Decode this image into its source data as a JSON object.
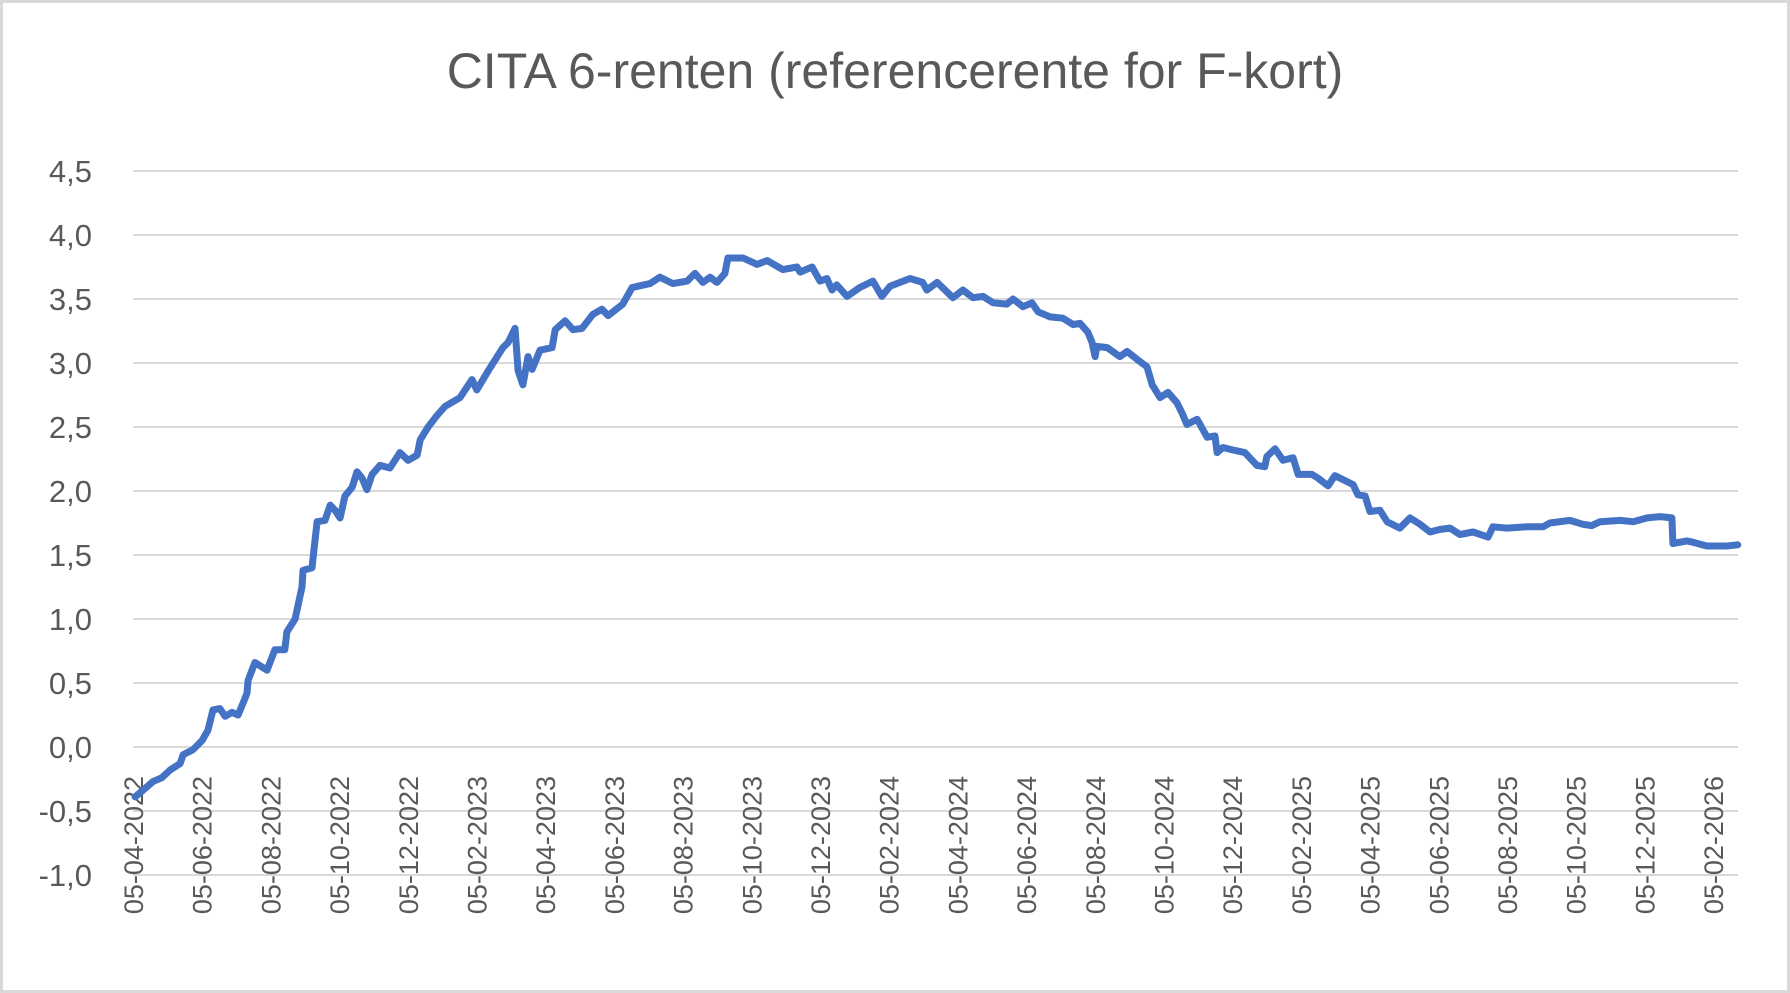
{
  "chart_data": {
    "type": "line",
    "title": "CITA 6-renten (referencerente for F-kort)",
    "xlabel": "",
    "ylabel": "",
    "ylim": [
      -1.0,
      4.5
    ],
    "yticks": [
      "4,5",
      "4,0",
      "3,5",
      "3,0",
      "2,5",
      "2,0",
      "1,5",
      "1,0",
      "0,5",
      "0,0",
      "-0,5",
      "-1,0"
    ],
    "ytick_values": [
      4.5,
      4.0,
      3.5,
      3.0,
      2.5,
      2.0,
      1.5,
      1.0,
      0.5,
      0.0,
      -0.5,
      -1.0
    ],
    "xticks": [
      "05-04-2022",
      "05-06-2022",
      "05-08-2022",
      "05-10-2022",
      "05-12-2022",
      "05-02-2023",
      "05-04-2023",
      "05-06-2023",
      "05-08-2023",
      "05-10-2023",
      "05-12-2023",
      "05-02-2024",
      "05-04-2024",
      "05-06-2024",
      "05-08-2024",
      "05-10-2024",
      "05-12-2024",
      "05-02-2025",
      "05-04-2025",
      "05-06-2025",
      "05-08-2025",
      "05-10-2025",
      "05-12-2025",
      "05-02-2026"
    ],
    "grid": true,
    "legend": null,
    "line_color": "#4472c4",
    "x_unit": "months since 05-04-2022",
    "series": [
      {
        "name": "CITA 6-renten",
        "points": [
          [
            0.06,
            -0.39
          ],
          [
            0.41,
            -0.31
          ],
          [
            0.58,
            -0.27
          ],
          [
            0.84,
            -0.24
          ],
          [
            1.08,
            -0.18
          ],
          [
            1.37,
            -0.13
          ],
          [
            1.46,
            -0.06
          ],
          [
            1.75,
            -0.02
          ],
          [
            2.01,
            0.05
          ],
          [
            2.18,
            0.13
          ],
          [
            2.33,
            0.29
          ],
          [
            2.53,
            0.3
          ],
          [
            2.68,
            0.24
          ],
          [
            2.88,
            0.27
          ],
          [
            3.06,
            0.25
          ],
          [
            3.2,
            0.34
          ],
          [
            3.32,
            0.42
          ],
          [
            3.35,
            0.52
          ],
          [
            3.55,
            0.66
          ],
          [
            3.9,
            0.6
          ],
          [
            4.13,
            0.76
          ],
          [
            4.42,
            0.76
          ],
          [
            4.48,
            0.9
          ],
          [
            4.72,
            1.0
          ],
          [
            4.92,
            1.25
          ],
          [
            4.95,
            1.38
          ],
          [
            5.21,
            1.4
          ],
          [
            5.3,
            1.62
          ],
          [
            5.36,
            1.76
          ],
          [
            5.59,
            1.77
          ],
          [
            5.74,
            1.89
          ],
          [
            5.88,
            1.85
          ],
          [
            6.03,
            1.79
          ],
          [
            6.17,
            1.96
          ],
          [
            6.38,
            2.03
          ],
          [
            6.52,
            2.15
          ],
          [
            6.67,
            2.1
          ],
          [
            6.81,
            2.01
          ],
          [
            6.96,
            2.13
          ],
          [
            7.19,
            2.2
          ],
          [
            7.48,
            2.18
          ],
          [
            7.77,
            2.3
          ],
          [
            8.01,
            2.24
          ],
          [
            8.27,
            2.28
          ],
          [
            8.36,
            2.4
          ],
          [
            8.59,
            2.5
          ],
          [
            8.85,
            2.59
          ],
          [
            9.08,
            2.66
          ],
          [
            9.52,
            2.73
          ],
          [
            9.87,
            2.87
          ],
          [
            10.01,
            2.79
          ],
          [
            10.39,
            2.96
          ],
          [
            10.77,
            3.12
          ],
          [
            10.92,
            3.16
          ],
          [
            11.12,
            3.27
          ],
          [
            11.21,
            2.94
          ],
          [
            11.35,
            2.83
          ],
          [
            11.5,
            3.05
          ],
          [
            11.62,
            2.95
          ],
          [
            11.85,
            3.1
          ],
          [
            12.2,
            3.12
          ],
          [
            12.29,
            3.26
          ],
          [
            12.58,
            3.33
          ],
          [
            12.81,
            3.26
          ],
          [
            13.07,
            3.27
          ],
          [
            13.39,
            3.38
          ],
          [
            13.65,
            3.42
          ],
          [
            13.83,
            3.37
          ],
          [
            14.26,
            3.46
          ],
          [
            14.53,
            3.59
          ],
          [
            15.05,
            3.62
          ],
          [
            15.34,
            3.67
          ],
          [
            15.72,
            3.62
          ],
          [
            16.13,
            3.64
          ],
          [
            16.36,
            3.7
          ],
          [
            16.59,
            3.63
          ],
          [
            16.8,
            3.67
          ],
          [
            17.0,
            3.63
          ],
          [
            17.23,
            3.7
          ],
          [
            17.32,
            3.82
          ],
          [
            17.76,
            3.82
          ],
          [
            18.17,
            3.77
          ],
          [
            18.46,
            3.8
          ],
          [
            18.92,
            3.73
          ],
          [
            19.33,
            3.75
          ],
          [
            19.42,
            3.71
          ],
          [
            19.77,
            3.75
          ],
          [
            20.0,
            3.64
          ],
          [
            20.2,
            3.66
          ],
          [
            20.35,
            3.57
          ],
          [
            20.49,
            3.61
          ],
          [
            20.79,
            3.52
          ],
          [
            21.16,
            3.59
          ],
          [
            21.54,
            3.64
          ],
          [
            21.8,
            3.52
          ],
          [
            22.04,
            3.6
          ],
          [
            22.62,
            3.66
          ],
          [
            22.99,
            3.63
          ],
          [
            23.11,
            3.57
          ],
          [
            23.41,
            3.63
          ],
          [
            23.87,
            3.51
          ],
          [
            24.16,
            3.57
          ],
          [
            24.45,
            3.51
          ],
          [
            24.75,
            3.52
          ],
          [
            25.04,
            3.47
          ],
          [
            25.44,
            3.46
          ],
          [
            25.62,
            3.5
          ],
          [
            25.91,
            3.44
          ],
          [
            26.17,
            3.47
          ],
          [
            26.35,
            3.4
          ],
          [
            26.7,
            3.36
          ],
          [
            27.07,
            3.35
          ],
          [
            27.37,
            3.3
          ],
          [
            27.57,
            3.31
          ],
          [
            27.8,
            3.24
          ],
          [
            27.92,
            3.16
          ],
          [
            28.01,
            3.05
          ],
          [
            28.06,
            3.13
          ],
          [
            28.36,
            3.12
          ],
          [
            28.73,
            3.05
          ],
          [
            28.94,
            3.09
          ],
          [
            29.32,
            3.01
          ],
          [
            29.52,
            2.97
          ],
          [
            29.67,
            2.83
          ],
          [
            29.9,
            2.73
          ],
          [
            30.13,
            2.77
          ],
          [
            30.39,
            2.69
          ],
          [
            30.54,
            2.61
          ],
          [
            30.68,
            2.52
          ],
          [
            30.98,
            2.56
          ],
          [
            31.27,
            2.42
          ],
          [
            31.5,
            2.43
          ],
          [
            31.56,
            2.3
          ],
          [
            31.73,
            2.34
          ],
          [
            32.02,
            2.32
          ],
          [
            32.37,
            2.3
          ],
          [
            32.72,
            2.2
          ],
          [
            32.95,
            2.19
          ],
          [
            33.01,
            2.27
          ],
          [
            33.25,
            2.33
          ],
          [
            33.48,
            2.24
          ],
          [
            33.77,
            2.26
          ],
          [
            33.92,
            2.13
          ],
          [
            34.32,
            2.13
          ],
          [
            34.5,
            2.1
          ],
          [
            34.79,
            2.04
          ],
          [
            34.99,
            2.12
          ],
          [
            35.52,
            2.05
          ],
          [
            35.66,
            1.97
          ],
          [
            35.87,
            1.96
          ],
          [
            36.01,
            1.84
          ],
          [
            36.3,
            1.85
          ],
          [
            36.51,
            1.76
          ],
          [
            36.88,
            1.71
          ],
          [
            37.18,
            1.79
          ],
          [
            37.47,
            1.74
          ],
          [
            37.76,
            1.68
          ],
          [
            38.05,
            1.7
          ],
          [
            38.34,
            1.71
          ],
          [
            38.63,
            1.66
          ],
          [
            39.01,
            1.68
          ],
          [
            39.45,
            1.64
          ],
          [
            39.59,
            1.72
          ],
          [
            40.0,
            1.71
          ],
          [
            40.58,
            1.72
          ],
          [
            41.05,
            1.72
          ],
          [
            41.25,
            1.75
          ],
          [
            41.83,
            1.77
          ],
          [
            42.21,
            1.74
          ],
          [
            42.47,
            1.73
          ],
          [
            42.71,
            1.76
          ],
          [
            43.29,
            1.77
          ],
          [
            43.67,
            1.76
          ],
          [
            44.08,
            1.79
          ],
          [
            44.45,
            1.8
          ],
          [
            44.8,
            1.79
          ],
          [
            44.83,
            1.59
          ],
          [
            45.24,
            1.61
          ],
          [
            45.41,
            1.6
          ],
          [
            45.82,
            1.57
          ],
          [
            46.4,
            1.57
          ],
          [
            46.72,
            1.58
          ]
        ]
      }
    ]
  }
}
